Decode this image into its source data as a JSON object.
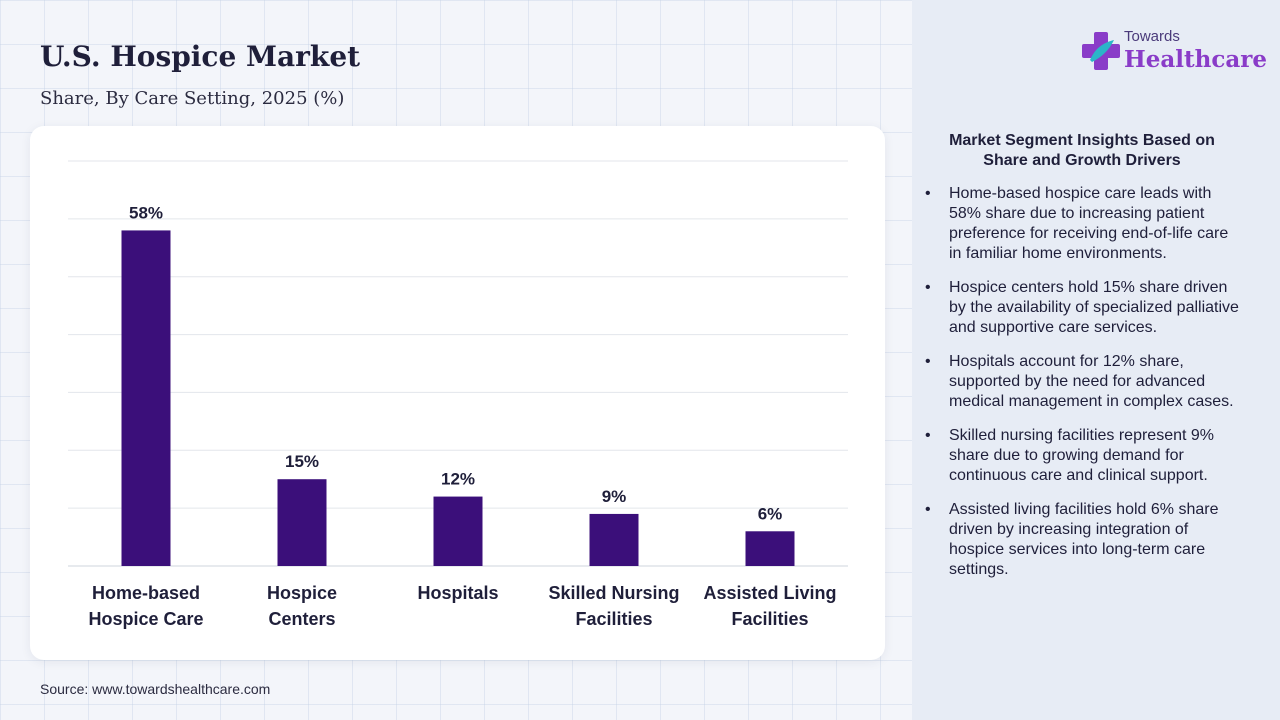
{
  "header": {
    "title": "U.S. Hospice Market",
    "subtitle": "Share, By Care Setting, 2025 (%)"
  },
  "brand": {
    "top": "Towards",
    "main": "Healthcare",
    "logo_icon": "plus-cross-icon",
    "colors": {
      "purple": "#8a3cc8",
      "teal": "#2bb5c8",
      "bar": "#3b0f7a"
    }
  },
  "chart_data": {
    "type": "bar",
    "categories": [
      [
        "Home-based",
        "Hospice Care"
      ],
      [
        "Hospice",
        "Centers"
      ],
      [
        "Hospitals"
      ],
      [
        "Skilled Nursing",
        "Facilities"
      ],
      [
        "Assisted Living",
        "Facilities"
      ]
    ],
    "values": [
      58,
      15,
      12,
      9,
      6
    ],
    "value_labels": [
      "58%",
      "15%",
      "12%",
      "9%",
      "6%"
    ],
    "ylim": [
      0,
      70
    ],
    "grid": true,
    "bar_color": "#3b0f7a"
  },
  "source": "Source: www.towardshealthcare.com",
  "insights": {
    "title": "Market Segment Insights Based on Share and Growth Drivers",
    "bullet": "•",
    "items": [
      "Home-based hospice care leads with 58% share due to increasing patient preference for receiving end-of-life care in familiar home environments.",
      "Hospice centers hold 15% share driven by the availability of specialized palliative and supportive care services.",
      "Hospitals account for 12% share, supported by the need for advanced medical management in complex cases.",
      "Skilled nursing facilities represent 9% share due to growing demand for continuous care and clinical support.",
      "Assisted living facilities hold 6% share driven by increasing integration of hospice services into long-term care settings."
    ]
  }
}
